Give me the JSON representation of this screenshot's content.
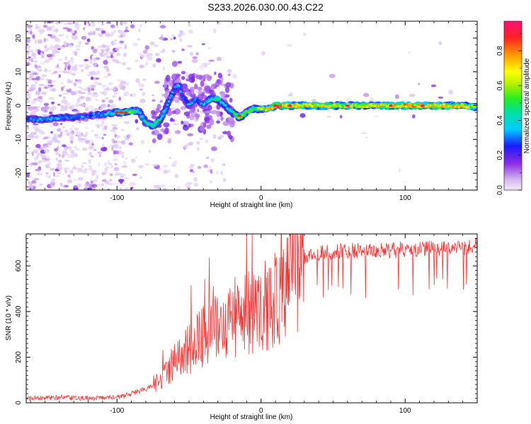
{
  "title": "S233.2026.030.00.43.C22",
  "chart_data": [
    {
      "type": "heatmap",
      "name": "spectrogram",
      "xlabel": "Height of straight line (km)",
      "ylabel": "Frequency (Hz)",
      "xlim": [
        -163,
        150
      ],
      "ylim": [
        -25,
        25
      ],
      "xticks": [
        -100,
        0,
        100
      ],
      "xtick_labels": [
        "-100",
        "0",
        "100"
      ],
      "yticks": [
        20,
        10,
        0,
        -10,
        -20
      ],
      "ytick_labels": [
        "20",
        "10",
        "0",
        "-10",
        "-20"
      ],
      "colorbar": {
        "label": "Normalized spectral amplitude",
        "range": [
          0,
          0.97
        ],
        "ticks": [
          0,
          0.2,
          0.4,
          0.6,
          0.8
        ],
        "tick_labels": [
          "0.0",
          "0.2",
          "0.4",
          "0.6",
          "0.8"
        ]
      },
      "ridge": {
        "x": [
          -163,
          -150,
          -140,
          -130,
          -120,
          -110,
          -100,
          -95,
          -90,
          -85,
          -80,
          -75,
          -70,
          -65,
          -60,
          -57,
          -55,
          -50,
          -45,
          -40,
          -35,
          -30,
          -25,
          -20,
          -15,
          -10,
          -5,
          0,
          5,
          10,
          20,
          40,
          60,
          80,
          100,
          120,
          140,
          150
        ],
        "y": [
          -4,
          -4,
          -3.5,
          -3.5,
          -3,
          -2.5,
          -2,
          -2,
          -1.5,
          -1.5,
          -5,
          -6,
          -4,
          0,
          5,
          6,
          3,
          0,
          2,
          0,
          2,
          2,
          0,
          -2,
          -3.5,
          -2,
          -1,
          -1,
          -1,
          0,
          0,
          0,
          0,
          0,
          0,
          0,
          0,
          -0.5
        ],
        "amp": [
          0.3,
          0.35,
          0.35,
          0.35,
          0.3,
          0.35,
          0.45,
          0.5,
          0.55,
          0.4,
          0.45,
          0.5,
          0.45,
          0.4,
          0.35,
          0.45,
          0.3,
          0.35,
          0.3,
          0.35,
          0.45,
          0.5,
          0.4,
          0.45,
          0.6,
          0.5,
          0.55,
          0.6,
          0.7,
          0.85,
          0.75,
          0.7,
          0.65,
          0.7,
          0.8,
          0.75,
          0.7,
          0.6
        ]
      }
    },
    {
      "type": "line",
      "name": "snr",
      "xlabel": "Height of straight line (km)",
      "ylabel": "SNR (10 * v/v)",
      "xlim": [
        -163,
        150
      ],
      "ylim": [
        0,
        740
      ],
      "xticks": [
        -100,
        0,
        100
      ],
      "xtick_labels": [
        "-100",
        "0",
        "100"
      ],
      "yticks": [
        0,
        200,
        400,
        600
      ],
      "ytick_labels": [
        "0",
        "200",
        "400",
        "600"
      ],
      "color": "#ee3333",
      "series": {
        "x": [
          -163,
          -150,
          -140,
          -130,
          -120,
          -110,
          -100,
          -95,
          -90,
          -85,
          -80,
          -75,
          -70,
          -65,
          -60,
          -55,
          -50,
          -45,
          -40,
          -35,
          -30,
          -25,
          -20,
          -15,
          -10,
          -5,
          0,
          5,
          10,
          15,
          20,
          25,
          30,
          35,
          40,
          50,
          60,
          70,
          80,
          90,
          100,
          110,
          120,
          130,
          140,
          150
        ],
        "y": [
          20,
          20,
          25,
          20,
          20,
          20,
          25,
          30,
          40,
          50,
          60,
          80,
          100,
          140,
          180,
          210,
          230,
          260,
          290,
          300,
          330,
          360,
          370,
          390,
          400,
          400,
          400,
          420,
          460,
          500,
          540,
          580,
          620,
          640,
          650,
          655,
          660,
          660,
          665,
          660,
          665,
          665,
          670,
          670,
          675,
          680
        ]
      }
    }
  ]
}
